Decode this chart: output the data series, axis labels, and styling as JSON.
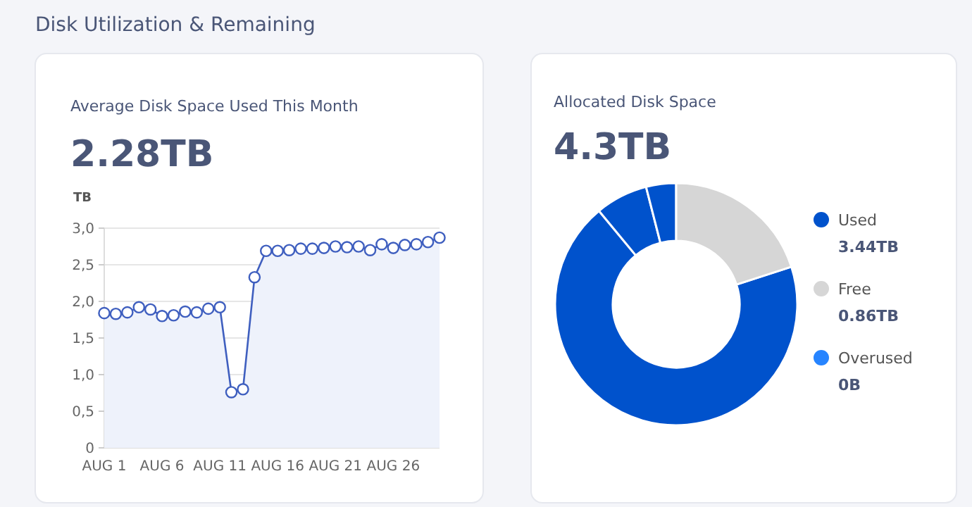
{
  "chart_data": [
    {
      "type": "area",
      "title": "Average Disk Space Used This Month",
      "subtitle": "2.28TB",
      "annotations": [
        "Disk Utilization & Remaining"
      ],
      "ylabel": "TB",
      "x": [
        "--08-01",
        "--08-02",
        "--08-03",
        "--08-04",
        "--08-05",
        "--08-06",
        "--08-07",
        "--08-08",
        "--08-09",
        "--08-10",
        "--08-11",
        "--08-12",
        "--08-13",
        "--08-14",
        "--08-15",
        "--08-16",
        "--08-17",
        "--08-18",
        "--08-19",
        "--08-20",
        "--08-21",
        "--08-22",
        "--08-23",
        "--08-24",
        "--08-25",
        "--08-26",
        "--08-27",
        "--08-28",
        "--08-29",
        "--08-30"
      ],
      "series": [
        {
          "color": "#3f5fbf",
          "values": [
            1.84,
            1.83,
            1.85,
            1.92,
            1.89,
            1.8,
            1.81,
            1.86,
            1.85,
            1.9,
            1.92,
            0.76,
            0.8,
            2.33,
            2.69,
            2.69,
            2.7,
            2.72,
            2.72,
            2.73,
            2.75,
            2.74,
            2.75,
            2.7,
            2.78,
            2.73,
            2.77,
            2.78,
            2.81,
            2.87
          ]
        }
      ],
      "xlim": [
        "--08-01",
        "--08-30"
      ],
      "xticks": [
        {
          "value": "--08-01",
          "label": "AUG 1"
        },
        {
          "value": "--08-06",
          "label": "AUG 6"
        },
        {
          "value": "--08-11",
          "label": "AUG 11"
        },
        {
          "value": "--08-16",
          "label": "AUG 16"
        },
        {
          "value": "--08-21",
          "label": "AUG 21"
        },
        {
          "value": "--08-26",
          "label": "AUG 26"
        }
      ],
      "ylim": [
        0,
        3
      ],
      "yticks": [
        0,
        {
          "value": 0.5,
          "label": "0,5"
        },
        {
          "value": 1,
          "label": "1,0"
        },
        {
          "value": 1.5,
          "label": "1,5"
        },
        {
          "value": 2,
          "label": "2,0"
        },
        {
          "value": 2.5,
          "label": "2,5"
        },
        {
          "value": 3,
          "label": "3,0"
        }
      ],
      "grid": "y",
      "marker": "circle"
    },
    {
      "type": "donut",
      "title": "Allocated Disk Space",
      "subtitle": "4.3TB",
      "categories": [
        "Used",
        null,
        null,
        "Free",
        "Overused"
      ],
      "values": [
        69,
        7,
        4,
        20,
        0
      ],
      "colors": [
        "#0052cc",
        "#0052cc",
        "#0052cc",
        "#d6d6d6",
        "#2684ff"
      ],
      "annotations": [
        "3.44TB",
        "0.86TB",
        "0B"
      ],
      "legend": "right"
    }
  ]
}
